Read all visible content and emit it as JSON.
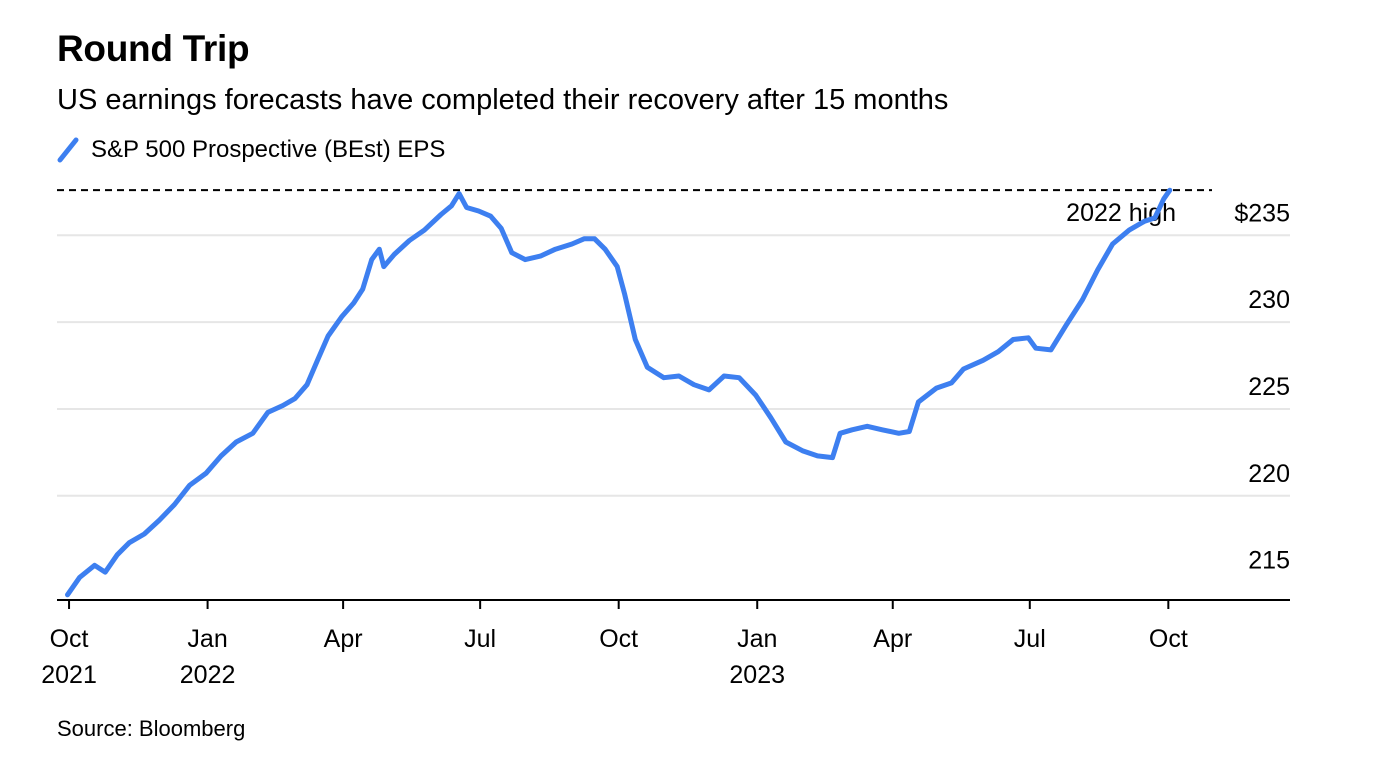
{
  "chart_data": {
    "type": "line",
    "title": "Round Trip",
    "subtitle": "US earnings forecasts have completed their recovery after 15 months",
    "source": "Source: Bloomberg",
    "series": [
      {
        "name": "S&P 500 Prospective (BEst) EPS",
        "color": "#3d7ff0",
        "points": [
          [
            "2021-09-30",
            214.3
          ],
          [
            "2021-10-08",
            215.3
          ],
          [
            "2021-10-18",
            216.0
          ],
          [
            "2021-10-25",
            215.6
          ],
          [
            "2021-11-02",
            216.6
          ],
          [
            "2021-11-10",
            217.3
          ],
          [
            "2021-11-20",
            217.8
          ],
          [
            "2021-11-30",
            218.6
          ],
          [
            "2021-12-10",
            219.5
          ],
          [
            "2021-12-20",
            220.6
          ],
          [
            "2021-12-31",
            221.3
          ],
          [
            "2022-01-10",
            222.3
          ],
          [
            "2022-01-20",
            223.1
          ],
          [
            "2022-01-31",
            223.6
          ],
          [
            "2022-02-10",
            224.8
          ],
          [
            "2022-02-20",
            225.2
          ],
          [
            "2022-02-28",
            225.6
          ],
          [
            "2022-03-08",
            226.4
          ],
          [
            "2022-03-15",
            227.8
          ],
          [
            "2022-03-22",
            229.2
          ],
          [
            "2022-03-31",
            230.3
          ],
          [
            "2022-04-08",
            231.1
          ],
          [
            "2022-04-14",
            231.9
          ],
          [
            "2022-04-20",
            233.6
          ],
          [
            "2022-04-25",
            234.2
          ],
          [
            "2022-04-28",
            233.2
          ],
          [
            "2022-05-05",
            233.9
          ],
          [
            "2022-05-15",
            234.7
          ],
          [
            "2022-05-25",
            235.3
          ],
          [
            "2022-06-05",
            236.2
          ],
          [
            "2022-06-12",
            236.7
          ],
          [
            "2022-06-17",
            237.4
          ],
          [
            "2022-06-22",
            236.6
          ],
          [
            "2022-06-30",
            236.4
          ],
          [
            "2022-07-08",
            236.1
          ],
          [
            "2022-07-15",
            235.4
          ],
          [
            "2022-07-22",
            234.0
          ],
          [
            "2022-07-31",
            233.6
          ],
          [
            "2022-08-10",
            233.8
          ],
          [
            "2022-08-20",
            234.2
          ],
          [
            "2022-08-31",
            234.5
          ],
          [
            "2022-09-08",
            234.8
          ],
          [
            "2022-09-15",
            234.8
          ],
          [
            "2022-09-22",
            234.2
          ],
          [
            "2022-09-30",
            233.2
          ],
          [
            "2022-10-05",
            231.6
          ],
          [
            "2022-10-12",
            229.0
          ],
          [
            "2022-10-20",
            227.4
          ],
          [
            "2022-10-31",
            226.8
          ],
          [
            "2022-11-10",
            226.9
          ],
          [
            "2022-11-20",
            226.4
          ],
          [
            "2022-11-30",
            226.1
          ],
          [
            "2022-12-10",
            226.9
          ],
          [
            "2022-12-20",
            226.8
          ],
          [
            "2022-12-31",
            225.8
          ],
          [
            "2023-01-10",
            224.5
          ],
          [
            "2023-01-20",
            223.1
          ],
          [
            "2023-01-31",
            222.6
          ],
          [
            "2023-02-10",
            222.3
          ],
          [
            "2023-02-20",
            222.2
          ],
          [
            "2023-02-25",
            223.6
          ],
          [
            "2023-03-05",
            223.8
          ],
          [
            "2023-03-15",
            224.0
          ],
          [
            "2023-03-25",
            223.8
          ],
          [
            "2023-04-05",
            223.6
          ],
          [
            "2023-04-12",
            223.7
          ],
          [
            "2023-04-18",
            225.4
          ],
          [
            "2023-04-30",
            226.2
          ],
          [
            "2023-05-10",
            226.5
          ],
          [
            "2023-05-18",
            227.3
          ],
          [
            "2023-05-31",
            227.8
          ],
          [
            "2023-06-10",
            228.3
          ],
          [
            "2023-06-20",
            229.0
          ],
          [
            "2023-06-30",
            229.1
          ],
          [
            "2023-07-05",
            228.5
          ],
          [
            "2023-07-15",
            228.4
          ],
          [
            "2023-07-25",
            229.8
          ],
          [
            "2023-08-05",
            231.3
          ],
          [
            "2023-08-15",
            233.0
          ],
          [
            "2023-08-25",
            234.5
          ],
          [
            "2023-09-05",
            235.3
          ],
          [
            "2023-09-15",
            235.8
          ],
          [
            "2023-09-22",
            236.0
          ],
          [
            "2023-09-28",
            237.1
          ],
          [
            "2023-10-02",
            237.6
          ]
        ]
      }
    ],
    "x_ticks": [
      {
        "date": "2021-10-01",
        "label": [
          "Oct",
          "2021"
        ]
      },
      {
        "date": "2022-01-01",
        "label": [
          "Jan",
          "2022"
        ]
      },
      {
        "date": "2022-04-01",
        "label": [
          "Apr"
        ]
      },
      {
        "date": "2022-07-01",
        "label": [
          "Jul"
        ]
      },
      {
        "date": "2022-10-01",
        "label": [
          "Oct"
        ]
      },
      {
        "date": "2023-01-01",
        "label": [
          "Jan",
          "2023"
        ]
      },
      {
        "date": "2023-04-01",
        "label": [
          "Apr"
        ]
      },
      {
        "date": "2023-07-01",
        "label": [
          "Jul"
        ]
      },
      {
        "date": "2023-10-01",
        "label": [
          "Oct"
        ]
      }
    ],
    "y_ticks": [
      {
        "value": 215,
        "label": "215"
      },
      {
        "value": 220,
        "label": "220"
      },
      {
        "value": 225,
        "label": "225"
      },
      {
        "value": 230,
        "label": "230"
      },
      {
        "value": 235,
        "label": "$235"
      }
    ],
    "xlim": [
      "2021-09-23",
      "2023-10-30"
    ],
    "ylim": [
      214,
      238.3
    ],
    "reference_line": {
      "value": 237.6,
      "label": "2022 high",
      "style": "dashed"
    },
    "grid": "horizontal",
    "legend": "top-left"
  }
}
